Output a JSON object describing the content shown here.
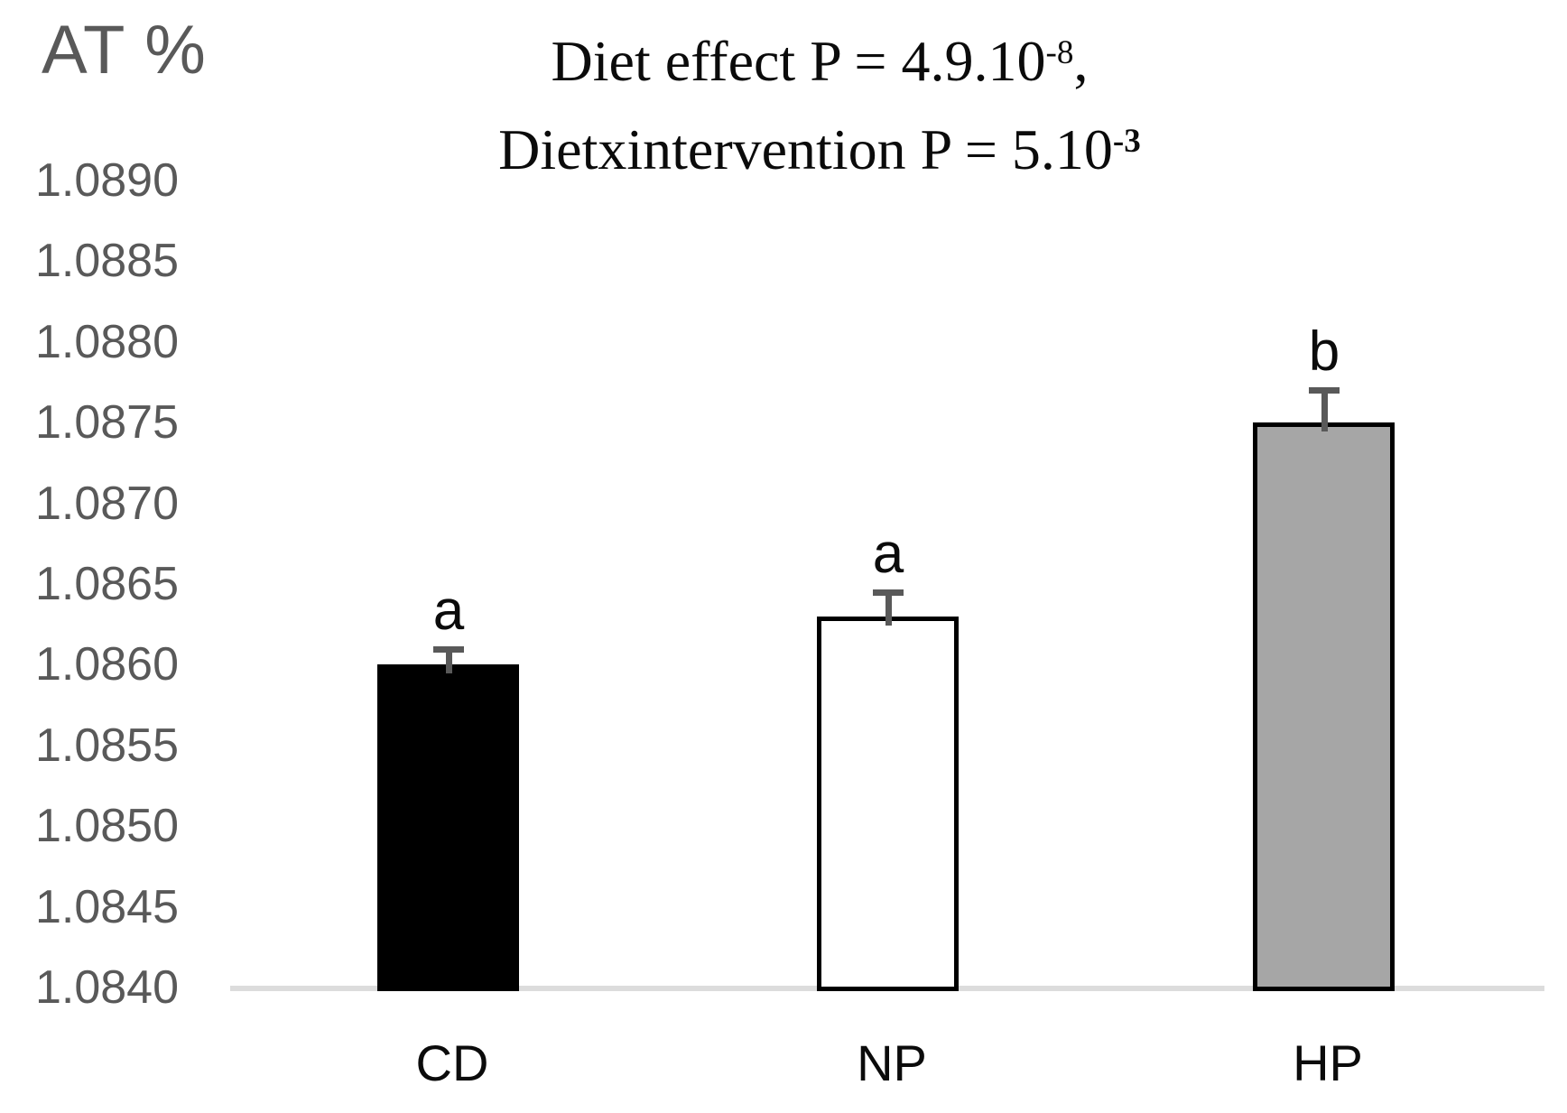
{
  "chart_data": {
    "type": "bar",
    "title_lines": [
      {
        "pre": "Diet effect P = 4.9.10",
        "sup": "-8",
        "post": ",",
        "sup_bold": false
      },
      {
        "pre": "Dietxintervention P = 5.10",
        "sup": "-3",
        "post": "",
        "sup_bold": true
      }
    ],
    "ylabel": "AT %",
    "categories": [
      "CD",
      "NP",
      "HP"
    ],
    "values": [
      1.086,
      1.0863,
      1.0875
    ],
    "errors": [
      0.0001,
      0.00015,
      0.0002
    ],
    "sig_letters": [
      "a",
      "a",
      "b"
    ],
    "bar_fill_colors": [
      "#000000",
      "#ffffff",
      "#a6a6a6"
    ],
    "bar_border_color": "#000000",
    "error_bar_color": "#595959",
    "axis_line_color": "#dcdcdc",
    "tick_label_color": "#595959",
    "x_label_color": "#0b0b0b",
    "ylim": [
      1.084,
      1.089
    ],
    "ytick_step": 0.0005,
    "yticks": [
      "1.0890",
      "1.0885",
      "1.0880",
      "1.0875",
      "1.0870",
      "1.0865",
      "1.0860",
      "1.0855",
      "1.0850",
      "1.0845",
      "1.0840"
    ],
    "grid": false,
    "legend": null
  }
}
